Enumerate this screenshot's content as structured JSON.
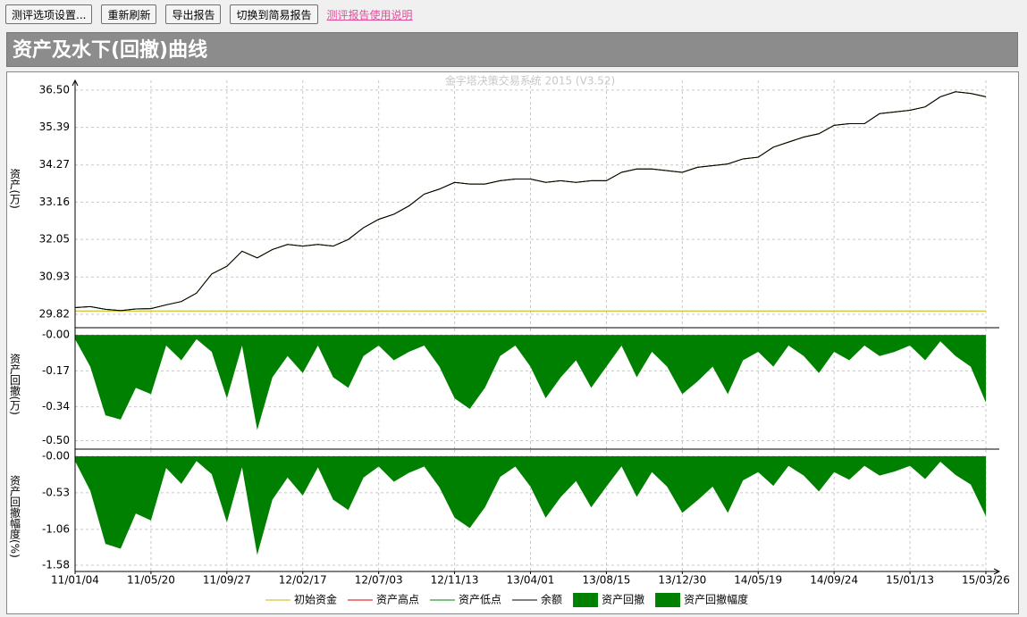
{
  "toolbar": {
    "buttons": [
      "测评选项设置...",
      "重新刷新",
      "导出报告",
      "切换到简易报告"
    ],
    "link": "测评报告使用说明"
  },
  "header": {
    "title": "资产及水下(回撤)曲线"
  },
  "chart": {
    "watermark": "金字塔决策交易系统 2015 (V3.52)",
    "xlim": [
      0,
      60
    ],
    "xticks": [
      {
        "value": 0,
        "label": "11/01/04"
      },
      {
        "value": 5,
        "label": "11/05/20"
      },
      {
        "value": 10,
        "label": "11/09/27"
      },
      {
        "value": 15,
        "label": "12/02/17"
      },
      {
        "value": 20,
        "label": "12/07/03"
      },
      {
        "value": 25,
        "label": "12/11/13"
      },
      {
        "value": 30,
        "label": "13/04/01"
      },
      {
        "value": 35,
        "label": "13/08/15"
      },
      {
        "value": 40,
        "label": "13/12/30"
      },
      {
        "value": 45,
        "label": "14/05/19"
      },
      {
        "value": 50,
        "label": "14/09/24"
      },
      {
        "value": 55,
        "label": "15/01/13"
      },
      {
        "value": 60,
        "label": "15/03/26"
      }
    ],
    "panels": [
      {
        "type": "line",
        "ylabel": "资产(万)",
        "ylim": [
          29.42,
          36.79
        ],
        "yticks": [
          {
            "value": 36.5,
            "label": "36.50"
          },
          {
            "value": 35.39,
            "label": "35.39"
          },
          {
            "value": 34.27,
            "label": "34.27"
          },
          {
            "value": 33.16,
            "label": "33.16"
          },
          {
            "value": 32.05,
            "label": "32.05"
          },
          {
            "value": 30.93,
            "label": "30.93"
          },
          {
            "value": 29.82,
            "label": "29.82"
          }
        ],
        "initial": {
          "name": "初始资金",
          "color": "#c8b400",
          "value": 29.92
        },
        "series": [
          {
            "name": "资产高点",
            "color": "#e00000",
            "values": [
              30.02,
              30.05,
              29.97,
              29.93,
              29.98,
              29.99,
              30.1,
              30.2,
              30.45,
              31.02,
              31.25,
              31.7,
              31.5,
              31.75,
              31.9,
              31.85,
              31.9,
              31.85,
              32.05,
              32.4,
              32.65,
              32.8,
              33.05,
              33.4,
              33.55,
              33.75,
              33.7,
              33.7,
              33.8,
              33.85,
              33.85,
              33.75,
              33.8,
              33.75,
              33.8,
              33.8,
              34.05,
              34.15,
              34.15,
              34.1,
              34.05,
              34.2,
              34.25,
              34.3,
              34.45,
              34.5,
              34.8,
              34.95,
              35.1,
              35.2,
              35.45,
              35.5,
              35.5,
              35.8,
              35.85,
              35.9,
              36.0,
              36.3,
              36.45,
              36.4,
              36.3
            ]
          },
          {
            "name": "资产低点",
            "color": "#008000",
            "values": [
              30.02,
              30.05,
              29.97,
              29.93,
              29.98,
              29.99,
              30.1,
              30.2,
              30.45,
              31.02,
              31.25,
              31.7,
              31.5,
              31.75,
              31.9,
              31.85,
              31.9,
              31.85,
              32.05,
              32.4,
              32.65,
              32.8,
              33.05,
              33.4,
              33.55,
              33.75,
              33.7,
              33.7,
              33.8,
              33.85,
              33.85,
              33.75,
              33.8,
              33.75,
              33.8,
              33.8,
              34.05,
              34.15,
              34.15,
              34.1,
              34.05,
              34.2,
              34.25,
              34.3,
              34.45,
              34.5,
              34.8,
              34.95,
              35.1,
              35.2,
              35.45,
              35.5,
              35.5,
              35.8,
              35.85,
              35.9,
              36.0,
              36.3,
              36.45,
              36.4,
              36.3
            ]
          },
          {
            "name": "余额",
            "color": "#000000",
            "values": [
              30.02,
              30.05,
              29.97,
              29.93,
              29.98,
              29.99,
              30.1,
              30.2,
              30.45,
              31.02,
              31.25,
              31.7,
              31.5,
              31.75,
              31.9,
              31.85,
              31.9,
              31.85,
              32.05,
              32.4,
              32.65,
              32.8,
              33.05,
              33.4,
              33.55,
              33.75,
              33.7,
              33.7,
              33.8,
              33.85,
              33.85,
              33.75,
              33.8,
              33.75,
              33.8,
              33.8,
              34.05,
              34.15,
              34.15,
              34.1,
              34.05,
              34.2,
              34.25,
              34.3,
              34.45,
              34.5,
              34.8,
              34.95,
              35.1,
              35.2,
              35.45,
              35.5,
              35.5,
              35.8,
              35.85,
              35.9,
              36.0,
              36.3,
              36.45,
              36.4,
              36.3
            ]
          }
        ]
      },
      {
        "type": "area",
        "ylabel": "资产回撤(万)",
        "ylim": [
          -0.54,
          0.03
        ],
        "yticks": [
          {
            "value": 0,
            "label": "-0.00"
          },
          -0.17,
          -0.34,
          {
            "value": -0.5,
            "label": "-0.50"
          }
        ],
        "series": [
          {
            "name": "资产回撤",
            "color": "#008000",
            "values": [
              -0.02,
              -0.15,
              -0.38,
              -0.4,
              -0.25,
              -0.28,
              -0.05,
              -0.12,
              -0.02,
              -0.08,
              -0.3,
              -0.05,
              -0.45,
              -0.2,
              -0.1,
              -0.18,
              -0.05,
              -0.2,
              -0.25,
              -0.1,
              -0.05,
              -0.12,
              -0.08,
              -0.05,
              -0.15,
              -0.3,
              -0.35,
              -0.25,
              -0.1,
              -0.05,
              -0.15,
              -0.3,
              -0.2,
              -0.12,
              -0.25,
              -0.15,
              -0.05,
              -0.2,
              -0.08,
              -0.15,
              -0.28,
              -0.22,
              -0.15,
              -0.28,
              -0.12,
              -0.08,
              -0.15,
              -0.05,
              -0.1,
              -0.18,
              -0.08,
              -0.12,
              -0.05,
              -0.1,
              -0.08,
              -0.05,
              -0.12,
              -0.03,
              -0.1,
              -0.15,
              -0.32
            ]
          }
        ]
      },
      {
        "type": "area",
        "ylabel": "资产回撤幅度(%)",
        "ylim": [
          -1.67,
          0.09
        ],
        "yticks": [
          {
            "value": 0,
            "label": "-0.00"
          },
          -0.53,
          -1.06,
          -1.58
        ],
        "series": [
          {
            "name": "资产回撤幅度",
            "color": "#008000",
            "values": [
              -0.07,
              -0.5,
              -1.27,
              -1.34,
              -0.83,
              -0.93,
              -0.17,
              -0.4,
              -0.07,
              -0.26,
              -0.96,
              -0.16,
              -1.43,
              -0.63,
              -0.31,
              -0.57,
              -0.16,
              -0.63,
              -0.78,
              -0.31,
              -0.15,
              -0.37,
              -0.24,
              -0.15,
              -0.45,
              -0.89,
              -1.04,
              -0.74,
              -0.3,
              -0.15,
              -0.44,
              -0.89,
              -0.59,
              -0.36,
              -0.74,
              -0.44,
              -0.15,
              -0.59,
              -0.23,
              -0.44,
              -0.82,
              -0.64,
              -0.44,
              -0.82,
              -0.35,
              -0.23,
              -0.43,
              -0.14,
              -0.28,
              -0.51,
              -0.23,
              -0.34,
              -0.14,
              -0.28,
              -0.22,
              -0.14,
              -0.33,
              -0.08,
              -0.27,
              -0.41,
              -0.87
            ]
          }
        ]
      }
    ]
  }
}
